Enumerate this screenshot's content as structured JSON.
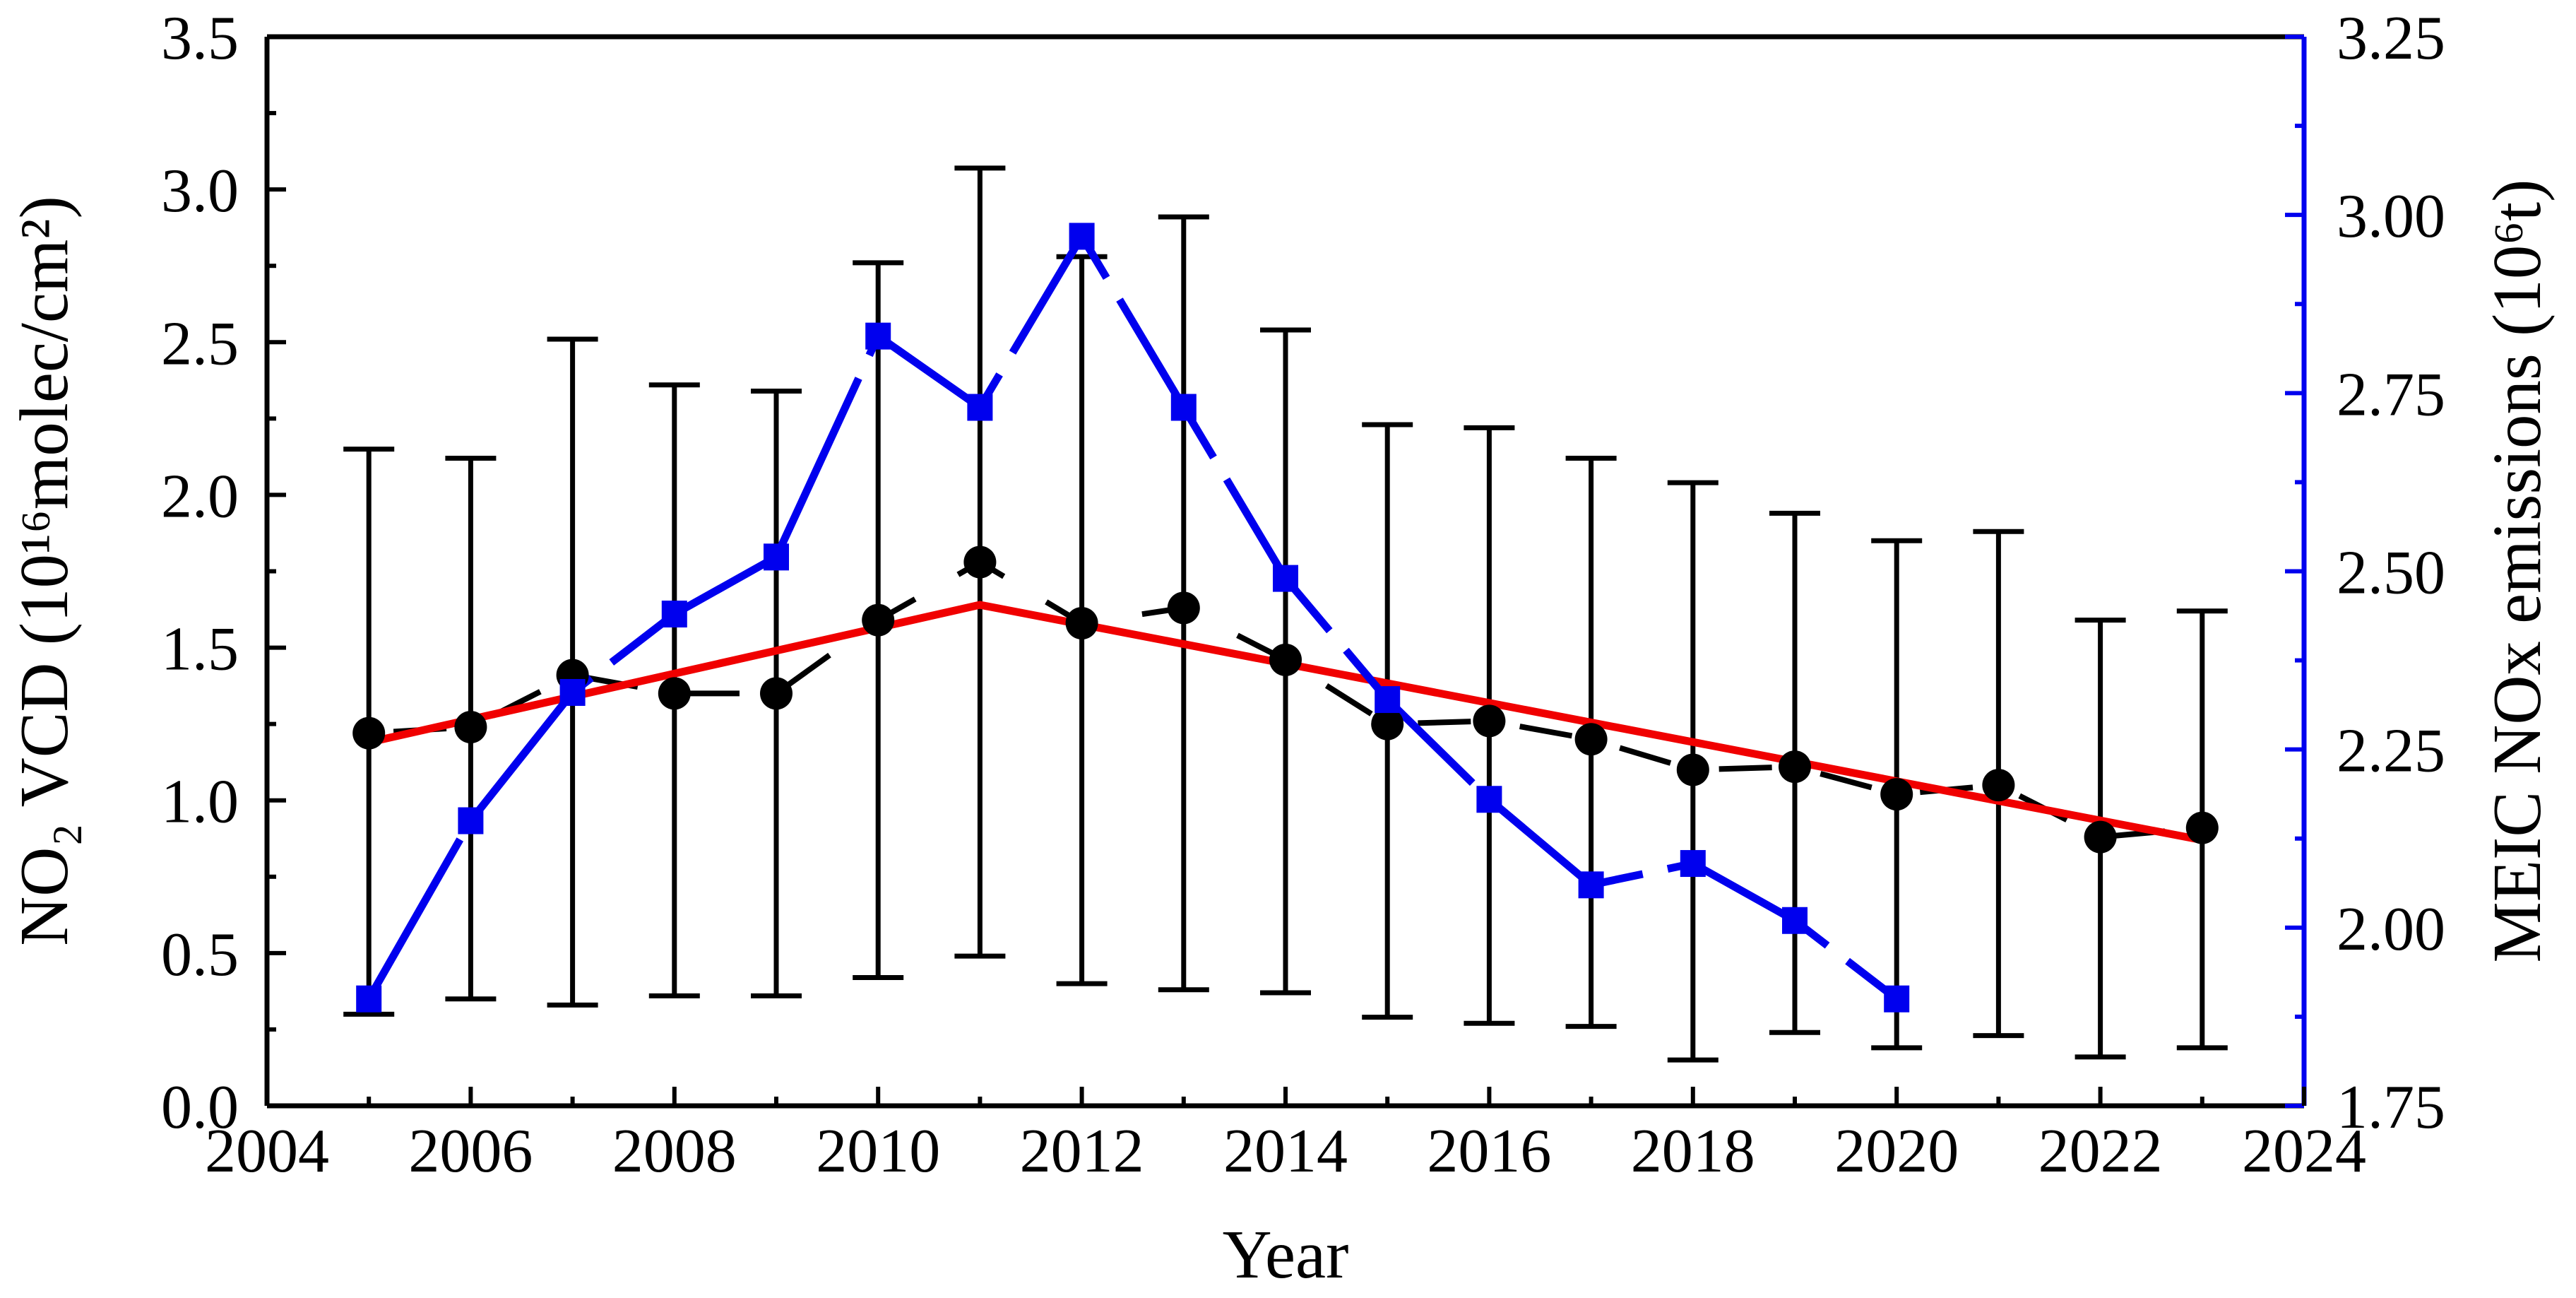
{
  "figure": {
    "background": "#ffffff",
    "x_axis_title": "Year",
    "left_axis_title": "NO₂ VCD (10¹⁶molec/cm²)",
    "right_axis_title": "MEIC NOx emissions (10⁶t)"
  },
  "colors": {
    "no2_series": "#000000",
    "meic_series": "#0000EE",
    "trend_line": "#F00000",
    "right_axis_spine": "#0000EE",
    "axis_black": "#000000"
  },
  "chart_data": {
    "type": "line",
    "title": "",
    "xlabel": "Year",
    "ylabel_left": "NO₂ VCD (10¹⁶molec/cm²)",
    "ylabel_right": "MEIC NOx emissions (10⁶t)",
    "x_axis": {
      "min": 2004,
      "max": 2024,
      "major_tick_step": 2,
      "minor_tick_step": 1,
      "tick_labels": [
        "2004",
        "2006",
        "2008",
        "2010",
        "2012",
        "2014",
        "2016",
        "2018",
        "2020",
        "2022",
        "2024"
      ],
      "tick_values": [
        2004,
        2006,
        2008,
        2010,
        2012,
        2014,
        2016,
        2018,
        2020,
        2022,
        2024
      ],
      "minor_tick_values": [
        2005,
        2007,
        2009,
        2011,
        2013,
        2015,
        2017,
        2019,
        2021,
        2023
      ]
    },
    "y_axis_left": {
      "min": 0.0,
      "max": 3.5,
      "major_tick_step": 0.5,
      "minor_tick_step": 0.25,
      "tick_labels": [
        "0.0",
        "0.5",
        "1.0",
        "1.5",
        "2.0",
        "2.5",
        "3.0",
        "3.5"
      ],
      "tick_values": [
        0.0,
        0.5,
        1.0,
        1.5,
        2.0,
        2.5,
        3.0,
        3.5
      ],
      "minor_tick_values": [
        0.25,
        0.75,
        1.25,
        1.75,
        2.25,
        2.75,
        3.25
      ]
    },
    "y_axis_right": {
      "min": 1.75,
      "max": 3.25,
      "major_tick_step": 0.25,
      "minor_tick_step": 0.125,
      "tick_labels": [
        "1.75",
        "2.00",
        "2.25",
        "2.50",
        "2.75",
        "3.00",
        "3.25"
      ],
      "tick_values": [
        1.75,
        2.0,
        2.25,
        2.5,
        2.75,
        3.0,
        3.25
      ],
      "minor_tick_values": [
        1.875,
        2.125,
        2.375,
        2.625,
        2.875,
        3.125
      ]
    },
    "grid": false,
    "legend": "none",
    "series": [
      {
        "name": "NO2 VCD",
        "axis": "left",
        "color": "#000000",
        "marker": "circle",
        "line_style": "dashed",
        "has_error_bars": true,
        "years": [
          2005,
          2006,
          2007,
          2008,
          2009,
          2010,
          2011,
          2012,
          2013,
          2014,
          2015,
          2016,
          2017,
          2018,
          2019,
          2020,
          2021,
          2022,
          2023
        ],
        "values": [
          1.22,
          1.24,
          1.41,
          1.35,
          1.35,
          1.59,
          1.78,
          1.58,
          1.63,
          1.46,
          1.25,
          1.26,
          1.2,
          1.1,
          1.11,
          1.02,
          1.05,
          0.88,
          0.91
        ],
        "error_upper": [
          2.15,
          2.12,
          2.51,
          2.36,
          2.34,
          2.76,
          3.07,
          2.78,
          2.91,
          2.54,
          2.23,
          2.22,
          2.12,
          2.04,
          1.94,
          1.85,
          1.88,
          1.59,
          1.62
        ],
        "error_lower": [
          0.3,
          0.35,
          0.33,
          0.36,
          0.36,
          0.42,
          0.49,
          0.4,
          0.38,
          0.37,
          0.29,
          0.27,
          0.26,
          0.15,
          0.24,
          0.19,
          0.23,
          0.16,
          0.19
        ]
      },
      {
        "name": "MEIC NOx emissions",
        "axis": "right",
        "color": "#0000EE",
        "marker": "square",
        "line_style": "long-dash",
        "has_error_bars": false,
        "years": [
          2005,
          2006,
          2007,
          2008,
          2009,
          2010,
          2011,
          2012,
          2013,
          2014,
          2015,
          2016,
          2017,
          2018,
          2019,
          2020
        ],
        "values": [
          1.9,
          2.15,
          2.33,
          2.44,
          2.52,
          2.83,
          2.73,
          2.97,
          2.73,
          2.49,
          2.32,
          2.18,
          2.06,
          2.09,
          2.01,
          1.9
        ]
      },
      {
        "name": "NO2 VCD piecewise trend",
        "axis": "left",
        "color": "#F00000",
        "marker": "none",
        "line_style": "solid",
        "has_error_bars": false,
        "points": [
          [
            2005,
            1.19
          ],
          [
            2011,
            1.64
          ],
          [
            2023,
            0.87
          ]
        ]
      }
    ]
  }
}
